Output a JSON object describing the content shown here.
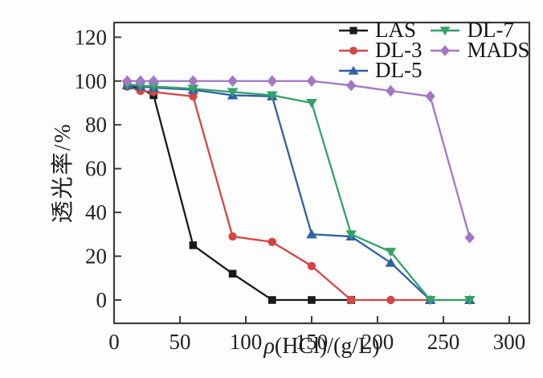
{
  "chart_data": {
    "type": "line",
    "title": "",
    "xlabel": "ρ(HCl)/(g/L)",
    "xlabel_italic": "ρ",
    "xlabel_rest": "(HCl)/(g/L)",
    "ylabel": "透光率/%",
    "x_ticks": [
      0,
      50,
      100,
      150,
      200,
      250,
      300
    ],
    "y_ticks": [
      0,
      20,
      40,
      60,
      80,
      100,
      120
    ],
    "xlim": [
      0,
      315
    ],
    "ylim": [
      -11,
      127
    ],
    "grid": false,
    "frame_color": "#3d3d3d",
    "legend": {
      "position": "top-right-inside",
      "columns": [
        [
          "LAS",
          "DL-3",
          "DL-5"
        ],
        [
          "DL-7",
          "MADS"
        ]
      ]
    },
    "series": [
      {
        "name": "LAS",
        "color": "#1a1a1a",
        "marker": "square",
        "x": [
          10,
          20,
          30,
          60,
          90,
          120,
          150,
          180
        ],
        "y": [
          98,
          96.5,
          93.5,
          25,
          12,
          0,
          0,
          0
        ]
      },
      {
        "name": "DL-3",
        "color": "#d64545",
        "marker": "circle",
        "x": [
          10,
          20,
          30,
          60,
          90,
          120,
          150,
          180,
          210,
          240
        ],
        "y": [
          97.5,
          95.5,
          95,
          93,
          29,
          26.5,
          15.5,
          0,
          0,
          0
        ]
      },
      {
        "name": "DL-5",
        "color": "#3060a6",
        "marker": "triangle-up",
        "x": [
          10,
          20,
          30,
          60,
          90,
          120,
          150,
          180,
          210,
          240,
          270
        ],
        "y": [
          98,
          97.5,
          97,
          96,
          93.5,
          93,
          30,
          29,
          17,
          0,
          0
        ]
      },
      {
        "name": "DL-7",
        "color": "#34a267",
        "marker": "triangle-down",
        "x": [
          10,
          20,
          30,
          60,
          90,
          120,
          150,
          180,
          210,
          240,
          270
        ],
        "y": [
          98.5,
          98,
          97.5,
          96.5,
          95,
          93.5,
          90,
          30,
          22,
          0,
          0
        ]
      },
      {
        "name": "MADS",
        "color": "#a277c6",
        "marker": "diamond",
        "x": [
          10,
          20,
          30,
          60,
          90,
          120,
          150,
          180,
          210,
          240,
          270
        ],
        "y": [
          100,
          100,
          100,
          100,
          100,
          100,
          100,
          98,
          95.5,
          93,
          28.5
        ]
      }
    ]
  }
}
